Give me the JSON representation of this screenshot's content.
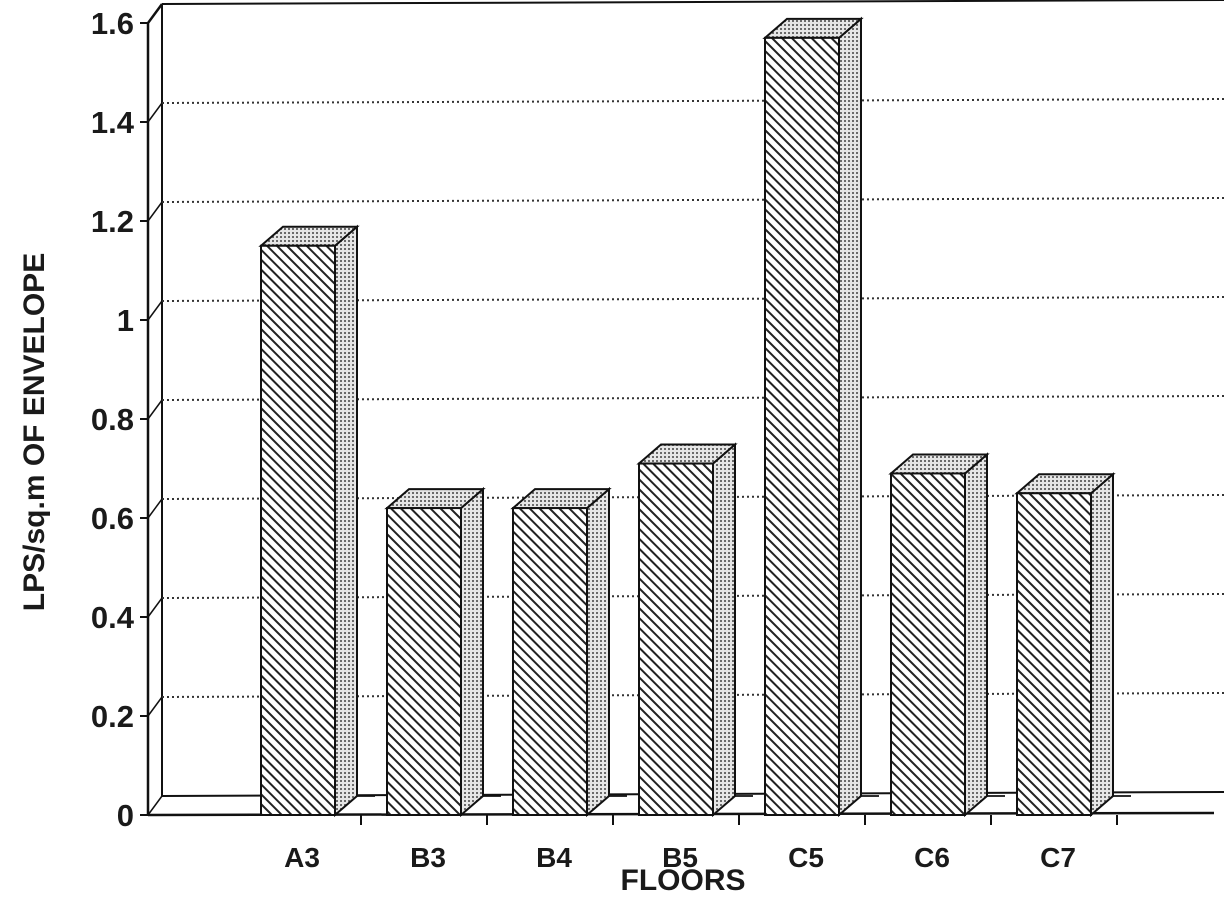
{
  "chart_data": {
    "type": "bar",
    "style": "3d",
    "categories": [
      "A3",
      "B3",
      "B4",
      "B5",
      "C5",
      "C6",
      "C7"
    ],
    "values": [
      1.15,
      0.62,
      0.62,
      0.71,
      1.57,
      0.69,
      0.65
    ],
    "xlabel": "FLOORS",
    "ylabel": "LPS/sq.m OF ENVELOPE",
    "ylim": [
      0,
      1.6
    ],
    "yticks": [
      "0",
      "0.2",
      "0.4",
      "0.6",
      "0.8",
      "1",
      "1.2",
      "1.4",
      "1.6"
    ],
    "grid": true,
    "colors": {
      "bar_face": "#3a3a3a",
      "bar_side": "#bdbdbd",
      "bar_top": "#a8a8a8",
      "axis": "#111111"
    }
  }
}
